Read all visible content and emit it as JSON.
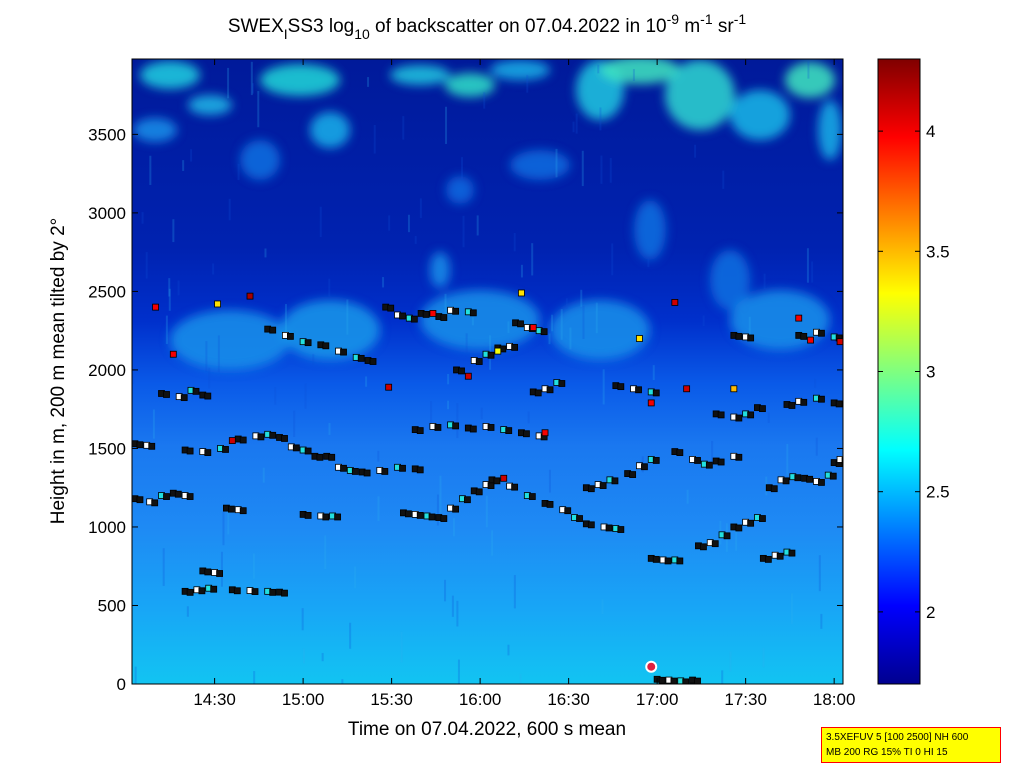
{
  "chart_data": {
    "type": "heatmap",
    "title": {
      "part1": "SWEX",
      "sub1": "I",
      "part2": "SS3 log",
      "sub2": "10",
      "part3": " of backscatter on 07.04.2022 in 10",
      "sup1": "-9",
      "part4": " m",
      "sup2": "-1",
      "part5": " sr",
      "sup3": "-1"
    },
    "xlabel": "Time on 07.04.2022, 600 s mean",
    "ylabel": "Height in m, 200 m mean tilted by 2°",
    "x_ticks": [
      {
        "label": "14:30",
        "minutes": 870
      },
      {
        "label": "15:00",
        "minutes": 900
      },
      {
        "label": "15:30",
        "minutes": 930
      },
      {
        "label": "16:00",
        "minutes": 960
      },
      {
        "label": "16:30",
        "minutes": 990
      },
      {
        "label": "17:00",
        "minutes": 1020
      },
      {
        "label": "17:30",
        "minutes": 1050
      },
      {
        "label": "18:00",
        "minutes": 1080
      }
    ],
    "x_range_minutes": [
      842,
      1083
    ],
    "y_ticks": [
      0,
      500,
      1000,
      1500,
      2000,
      2500,
      3000,
      3500
    ],
    "y_range": [
      0,
      3980
    ],
    "colorbar": {
      "range": [
        1.7,
        4.3
      ],
      "ticks": [
        "2",
        "2.5",
        "3",
        "3.5",
        "4"
      ],
      "tick_values": [
        2,
        2.5,
        3,
        3.5,
        4
      ],
      "colormap": "jet"
    },
    "layers": [
      {
        "points": [
          [
            843,
            1180
          ],
          [
            848,
            1160
          ],
          [
            852,
            1200
          ],
          [
            856,
            1215
          ],
          [
            860,
            1200
          ]
        ]
      },
      {
        "points": [
          [
            843,
            1530
          ],
          [
            847,
            1520
          ]
        ]
      },
      {
        "points": [
          [
            852,
            1850
          ],
          [
            858,
            1830
          ],
          [
            862,
            1870
          ],
          [
            866,
            1840
          ]
        ]
      },
      {
        "points": [
          [
            860,
            1490
          ],
          [
            866,
            1480
          ],
          [
            872,
            1500
          ],
          [
            878,
            1560
          ],
          [
            884,
            1580
          ],
          [
            888,
            1590
          ],
          [
            892,
            1570
          ],
          [
            896,
            1510
          ],
          [
            900,
            1490
          ],
          [
            904,
            1450
          ]
        ]
      },
      {
        "points": [
          [
            888,
            2260
          ],
          [
            894,
            2220
          ],
          [
            900,
            2180
          ],
          [
            906,
            2160
          ],
          [
            912,
            2120
          ],
          [
            918,
            2080
          ],
          [
            922,
            2060
          ]
        ]
      },
      {
        "points": [
          [
            860,
            590
          ],
          [
            864,
            600
          ],
          [
            868,
            610
          ],
          [
            876,
            600
          ],
          [
            882,
            595
          ],
          [
            888,
            590
          ],
          [
            892,
            585
          ]
        ]
      },
      {
        "points": [
          [
            866,
            720
          ],
          [
            870,
            710
          ]
        ]
      },
      {
        "points": [
          [
            874,
            1120
          ],
          [
            878,
            1110
          ]
        ]
      },
      {
        "points": [
          [
            900,
            1080
          ],
          [
            906,
            1070
          ],
          [
            910,
            1070
          ]
        ]
      },
      {
        "points": [
          [
            908,
            1450
          ],
          [
            912,
            1380
          ],
          [
            916,
            1360
          ],
          [
            920,
            1350
          ],
          [
            926,
            1360
          ],
          [
            932,
            1380
          ],
          [
            938,
            1370
          ]
        ]
      },
      {
        "points": [
          [
            928,
            2400
          ],
          [
            932,
            2350
          ],
          [
            936,
            2330
          ],
          [
            940,
            2360
          ]
        ]
      },
      {
        "points": [
          [
            934,
            1090
          ],
          [
            938,
            1080
          ],
          [
            942,
            1070
          ],
          [
            946,
            1060
          ],
          [
            950,
            1120
          ],
          [
            954,
            1180
          ],
          [
            958,
            1230
          ],
          [
            962,
            1270
          ]
        ]
      },
      {
        "points": [
          [
            938,
            1620
          ],
          [
            944,
            1640
          ],
          [
            950,
            1650
          ],
          [
            956,
            1630
          ],
          [
            962,
            1640
          ],
          [
            968,
            1620
          ],
          [
            974,
            1600
          ],
          [
            980,
            1580
          ]
        ]
      },
      {
        "points": [
          [
            946,
            2340
          ],
          [
            950,
            2380
          ],
          [
            956,
            2370
          ]
        ]
      },
      {
        "points": [
          [
            952,
            2000
          ],
          [
            958,
            2060
          ],
          [
            962,
            2100
          ],
          [
            966,
            2140
          ],
          [
            970,
            2150
          ]
        ]
      },
      {
        "points": [
          [
            964,
            1300
          ],
          [
            970,
            1260
          ],
          [
            976,
            1200
          ],
          [
            982,
            1150
          ],
          [
            988,
            1110
          ],
          [
            992,
            1060
          ],
          [
            996,
            1020
          ],
          [
            1002,
            1000
          ],
          [
            1006,
            990
          ]
        ]
      },
      {
        "points": [
          [
            972,
            2300
          ],
          [
            976,
            2270
          ],
          [
            980,
            2250
          ]
        ]
      },
      {
        "points": [
          [
            978,
            1860
          ],
          [
            982,
            1880
          ],
          [
            986,
            1920
          ]
        ]
      },
      {
        "points": [
          [
            996,
            1250
          ],
          [
            1000,
            1270
          ],
          [
            1004,
            1300
          ],
          [
            1010,
            1340
          ],
          [
            1014,
            1390
          ],
          [
            1018,
            1430
          ]
        ]
      },
      {
        "points": [
          [
            1006,
            1900
          ],
          [
            1012,
            1880
          ],
          [
            1018,
            1860
          ]
        ]
      },
      {
        "points": [
          [
            1018,
            800
          ],
          [
            1022,
            790
          ],
          [
            1026,
            790
          ]
        ]
      },
      {
        "points": [
          [
            1026,
            1480
          ],
          [
            1032,
            1430
          ],
          [
            1036,
            1400
          ],
          [
            1040,
            1420
          ],
          [
            1046,
            1450
          ]
        ]
      },
      {
        "points": [
          [
            1034,
            880
          ],
          [
            1038,
            900
          ],
          [
            1042,
            950
          ],
          [
            1046,
            1000
          ],
          [
            1050,
            1030
          ],
          [
            1054,
            1060
          ]
        ]
      },
      {
        "points": [
          [
            1040,
            1720
          ],
          [
            1046,
            1700
          ],
          [
            1050,
            1720
          ],
          [
            1054,
            1760
          ]
        ]
      },
      {
        "points": [
          [
            1046,
            2220
          ],
          [
            1050,
            2210
          ]
        ]
      },
      {
        "points": [
          [
            1056,
            800
          ],
          [
            1060,
            820
          ],
          [
            1064,
            840
          ]
        ]
      },
      {
        "points": [
          [
            1058,
            1250
          ],
          [
            1062,
            1300
          ],
          [
            1066,
            1320
          ],
          [
            1070,
            1310
          ],
          [
            1074,
            1290
          ],
          [
            1078,
            1330
          ]
        ]
      },
      {
        "points": [
          [
            1064,
            1780
          ],
          [
            1068,
            1800
          ],
          [
            1074,
            1820
          ],
          [
            1080,
            1790
          ]
        ]
      },
      {
        "points": [
          [
            1068,
            2220
          ],
          [
            1074,
            2240
          ],
          [
            1080,
            2210
          ]
        ]
      },
      {
        "points": [
          [
            1080,
            1410
          ],
          [
            1082,
            1430
          ]
        ]
      },
      {
        "points": [
          [
            1020,
            30
          ],
          [
            1024,
            25
          ],
          [
            1028,
            20
          ],
          [
            1032,
            25
          ]
        ]
      }
    ],
    "colored_points": [
      {
        "x": 850,
        "y": 2400,
        "v": 4.0
      },
      {
        "x": 871,
        "y": 2420,
        "v": 3.4
      },
      {
        "x": 856,
        "y": 2100,
        "v": 4.0
      },
      {
        "x": 876,
        "y": 1550,
        "v": 4.1
      },
      {
        "x": 882,
        "y": 2470,
        "v": 4.2
      },
      {
        "x": 929,
        "y": 1890,
        "v": 4.1
      },
      {
        "x": 944,
        "y": 2360,
        "v": 4.0
      },
      {
        "x": 956,
        "y": 1960,
        "v": 4.1
      },
      {
        "x": 966,
        "y": 2120,
        "v": 3.3
      },
      {
        "x": 974,
        "y": 2490,
        "v": 3.4
      },
      {
        "x": 978,
        "y": 2270,
        "v": 4.0
      },
      {
        "x": 982,
        "y": 1600,
        "v": 4.0
      },
      {
        "x": 968,
        "y": 1310,
        "v": 4.1
      },
      {
        "x": 1014,
        "y": 2200,
        "v": 3.4
      },
      {
        "x": 1018,
        "y": 1790,
        "v": 4.0
      },
      {
        "x": 1026,
        "y": 2430,
        "v": 4.1
      },
      {
        "x": 1030,
        "y": 1880,
        "v": 4.1
      },
      {
        "x": 1046,
        "y": 1880,
        "v": 3.5
      },
      {
        "x": 1068,
        "y": 2330,
        "v": 4.0
      },
      {
        "x": 1072,
        "y": 2190,
        "v": 4.0
      },
      {
        "x": 1082,
        "y": 2180,
        "v": 4.1
      }
    ],
    "marker": {
      "x": 1018,
      "y": 110
    }
  },
  "info_box": {
    "line1": "3.5XEFUV 5 [100 2500] NH 600",
    "line2": "MB 200 RG 15% TI 0 HI 15"
  }
}
